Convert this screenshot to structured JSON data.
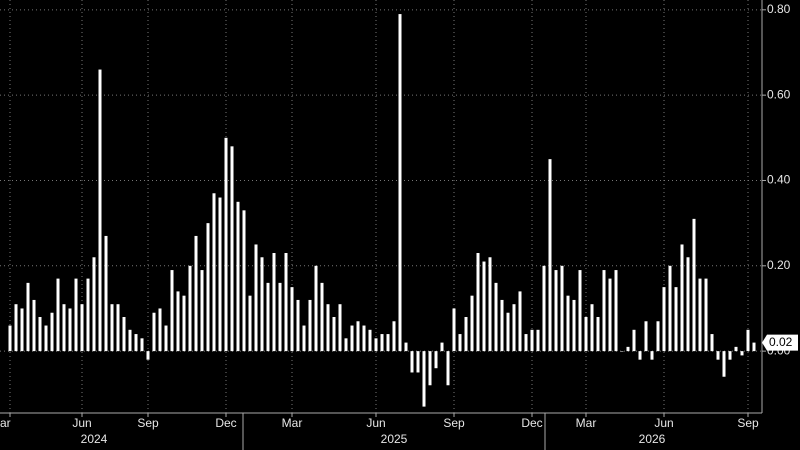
{
  "chart_data": {
    "type": "bar",
    "categories": [
      "ar",
      null,
      null,
      null,
      null,
      null,
      null,
      null,
      null,
      null,
      null,
      null,
      "Jun",
      null,
      null,
      null,
      null,
      null,
      null,
      null,
      null,
      null,
      null,
      "Sep",
      null,
      null,
      null,
      null,
      null,
      null,
      null,
      null,
      null,
      null,
      null,
      null,
      "Dec",
      null,
      null,
      null,
      null,
      null,
      null,
      null,
      null,
      null,
      null,
      "Mar",
      null,
      null,
      null,
      null,
      null,
      null,
      null,
      null,
      null,
      null,
      null,
      null,
      null,
      "Jun",
      null,
      null,
      null,
      null,
      null,
      null,
      null,
      null,
      null,
      null,
      null,
      null,
      "Sep",
      null,
      null,
      null,
      null,
      null,
      null,
      null,
      null,
      null,
      null,
      null,
      null,
      "Dec",
      null,
      null,
      null,
      null,
      null,
      null,
      null,
      null,
      "Mar",
      null,
      null,
      null,
      null,
      null,
      null,
      null,
      null,
      null,
      null,
      null,
      null,
      "Jun",
      null,
      null,
      null,
      null,
      null,
      null,
      null,
      null,
      null,
      null,
      null,
      null,
      null,
      "Sep",
      null
    ],
    "year_categories": [
      null,
      null,
      null,
      null,
      null,
      null,
      null,
      null,
      null,
      null,
      null,
      null,
      null,
      null,
      "2024",
      null,
      null,
      null,
      null,
      null,
      null,
      null,
      null,
      null,
      null,
      null,
      null,
      null,
      null,
      null,
      null,
      null,
      null,
      null,
      null,
      null,
      null,
      null,
      null,
      null,
      null,
      null,
      null,
      null,
      null,
      null,
      null,
      null,
      null,
      null,
      null,
      null,
      null,
      null,
      null,
      null,
      null,
      null,
      null,
      null,
      null,
      null,
      null,
      null,
      "2025",
      null,
      null,
      null,
      null,
      null,
      null,
      null,
      null,
      null,
      null,
      null,
      null,
      null,
      null,
      null,
      null,
      null,
      null,
      null,
      null,
      null,
      null,
      null,
      null,
      null,
      null,
      null,
      null,
      null,
      null,
      null,
      null,
      null,
      null,
      null,
      null,
      null,
      null,
      null,
      null,
      null,
      null,
      "2026",
      null,
      null,
      null,
      null,
      null,
      null,
      null,
      null,
      null,
      null,
      null,
      null,
      null,
      null,
      null,
      null,
      null
    ],
    "values": [
      0.06,
      0.11,
      0.1,
      0.16,
      0.12,
      0.08,
      0.06,
      0.09,
      0.17,
      0.11,
      0.1,
      0.17,
      0.11,
      0.17,
      0.22,
      0.66,
      0.27,
      0.11,
      0.11,
      0.08,
      0.05,
      0.04,
      0.03,
      -0.02,
      0.09,
      0.1,
      0.06,
      0.19,
      0.14,
      0.13,
      0.2,
      0.27,
      0.19,
      0.3,
      0.37,
      0.36,
      0.5,
      0.48,
      0.35,
      0.33,
      0.13,
      0.25,
      0.22,
      0.16,
      0.23,
      0.16,
      0.23,
      0.15,
      0.12,
      0.06,
      0.12,
      0.2,
      0.16,
      0.11,
      0.08,
      0.11,
      0.03,
      0.06,
      0.07,
      0.06,
      0.05,
      0.03,
      0.04,
      0.04,
      0.07,
      0.79,
      0.02,
      -0.05,
      -0.05,
      -0.13,
      -0.08,
      -0.04,
      0.02,
      -0.08,
      0.1,
      0.04,
      0.08,
      0.13,
      0.23,
      0.21,
      0.22,
      0.16,
      0.12,
      0.09,
      0.11,
      0.14,
      0.04,
      0.05,
      0.05,
      0.2,
      0.45,
      0.19,
      0.2,
      0.13,
      0.12,
      0.19,
      0.08,
      0.11,
      0.08,
      0.19,
      0.17,
      0.19,
      0.0,
      0.01,
      0.05,
      -0.02,
      0.07,
      -0.02,
      0.07,
      0.15,
      0.2,
      0.15,
      0.25,
      0.22,
      0.31,
      0.17,
      0.17,
      0.04,
      -0.02,
      -0.06,
      -0.02,
      0.01,
      -0.01,
      0.05,
      0.02
    ],
    "color": "#ffffff",
    "last_value_label": "0.02",
    "ylim": [
      -0.145,
      0.823
    ],
    "yticks": [
      {
        "value": 0,
        "label": "0.00"
      },
      {
        "value": 0.2,
        "label": "0.20"
      },
      {
        "value": 0.4,
        "label": "0.40"
      },
      {
        "value": 0.6,
        "label": "0.60"
      },
      {
        "value": 0.8,
        "label": "0.80"
      }
    ],
    "grid": true
  }
}
